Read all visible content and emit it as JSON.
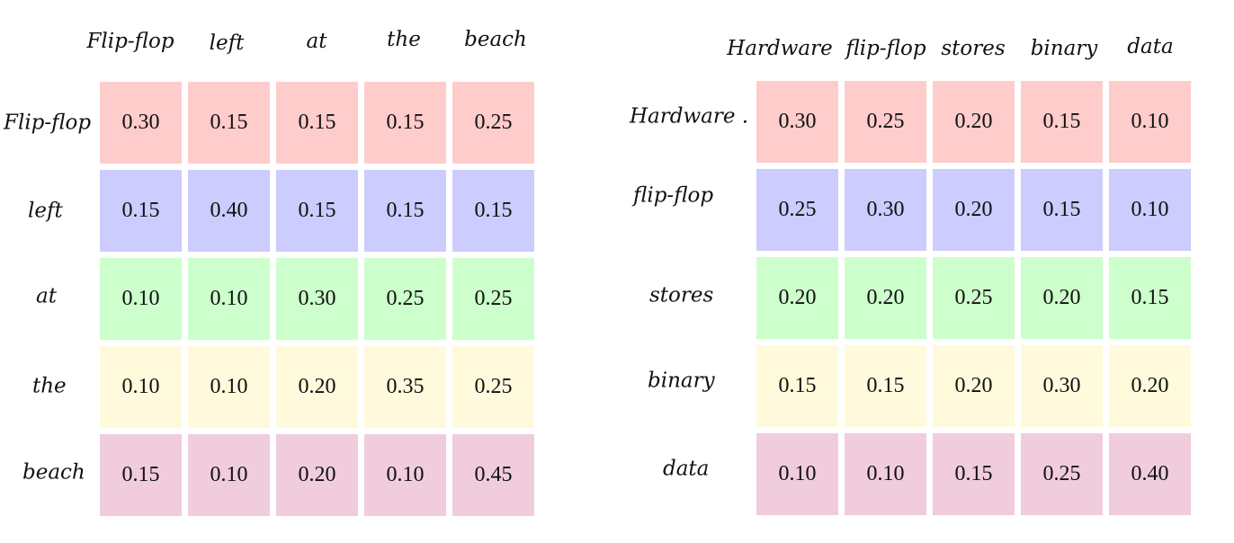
{
  "matrices": [
    {
      "columns": [
        "Flip-flop",
        "left",
        "at",
        "the",
        "beach"
      ],
      "rows": [
        {
          "label": "Flip-flop",
          "values": [
            "0.30",
            "0.15",
            "0.15",
            "0.15",
            "0.25"
          ]
        },
        {
          "label": "left",
          "values": [
            "0.15",
            "0.40",
            "0.15",
            "0.15",
            "0.15"
          ]
        },
        {
          "label": "at",
          "values": [
            "0.10",
            "0.10",
            "0.30",
            "0.25",
            "0.25"
          ]
        },
        {
          "label": "the",
          "values": [
            "0.10",
            "0.10",
            "0.20",
            "0.35",
            "0.25"
          ]
        },
        {
          "label": "beach",
          "values": [
            "0.15",
            "0.10",
            "0.20",
            "0.10",
            "0.45"
          ]
        }
      ]
    },
    {
      "columns": [
        "Hardware",
        "flip-flop",
        "stores",
        "binary",
        "data"
      ],
      "rows": [
        {
          "label": "Hardware .",
          "values": [
            "0.30",
            "0.25",
            "0.20",
            "0.15",
            "0.10"
          ]
        },
        {
          "label": "flip-flop",
          "values": [
            "0.25",
            "0.30",
            "0.20",
            "0.15",
            "0.10"
          ]
        },
        {
          "label": "stores",
          "values": [
            "0.20",
            "0.20",
            "0.25",
            "0.20",
            "0.15"
          ]
        },
        {
          "label": "binary",
          "values": [
            "0.15",
            "0.15",
            "0.20",
            "0.30",
            "0.20"
          ]
        },
        {
          "label": "data",
          "values": [
            "0.10",
            "0.10",
            "0.15",
            "0.25",
            "0.40"
          ]
        }
      ]
    }
  ],
  "row_colors": [
    "#ffcccc",
    "#ccccff",
    "#ccffcc",
    "#fffadc",
    "#f0ccdc"
  ]
}
